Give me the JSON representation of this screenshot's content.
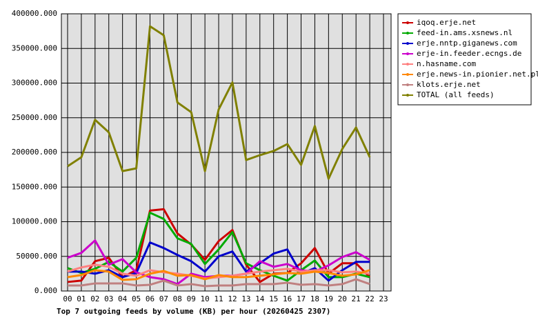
{
  "chart_data": {
    "type": "line",
    "title": "Top 7 outgoing feeds by volume (KB) per hour (20260425 2307)",
    "categories": [
      "00",
      "01",
      "02",
      "03",
      "04",
      "05",
      "06",
      "07",
      "08",
      "09",
      "10",
      "11",
      "12",
      "13",
      "14",
      "15",
      "16",
      "17",
      "18",
      "19",
      "20",
      "21",
      "22",
      "23"
    ],
    "ylim": [
      0,
      400000
    ],
    "yticks": [
      {
        "value": 0,
        "label": "0.000"
      },
      {
        "value": 50000,
        "label": "50000.000"
      },
      {
        "value": 100000,
        "label": "100000.000"
      },
      {
        "value": 150000,
        "label": "150000.000"
      },
      {
        "value": 200000,
        "label": "200000.000"
      },
      {
        "value": 250000,
        "label": "250000.000"
      },
      {
        "value": 300000,
        "label": "300000.000"
      },
      {
        "value": 350000,
        "label": "350000.000"
      },
      {
        "value": 400000,
        "label": "400000.000"
      }
    ],
    "grid": true,
    "legend": "top-right",
    "series": [
      {
        "name": "iqoq.erje.net",
        "color": "#cc0000",
        "values": [
          13000,
          15000,
          43000,
          48000,
          20000,
          30000,
          116000,
          118000,
          83000,
          67000,
          45000,
          72000,
          88000,
          38000,
          13000,
          25000,
          26000,
          40000,
          62000,
          25000,
          40000,
          40000,
          20000,
          null
        ]
      },
      {
        "name": "feed-in.ams.xsnews.nl",
        "color": "#00aa00",
        "values": [
          33000,
          26000,
          32000,
          42000,
          28000,
          48000,
          113000,
          104000,
          76000,
          68000,
          39000,
          60000,
          85000,
          40000,
          30000,
          22000,
          15000,
          30000,
          44000,
          20000,
          20000,
          25000,
          20000,
          null
        ]
      },
      {
        "name": "erje.nntp.giganews.com",
        "color": "#0000cc",
        "values": [
          28000,
          28000,
          25000,
          30000,
          20000,
          26000,
          70000,
          62000,
          52000,
          43000,
          28000,
          50000,
          57000,
          28000,
          40000,
          54000,
          60000,
          25000,
          33000,
          15000,
          30000,
          42000,
          42000,
          null
        ]
      },
      {
        "name": "erje-in.feeder.ecngs.de",
        "color": "#cc00cc",
        "values": [
          48000,
          55000,
          73000,
          38000,
          46000,
          27000,
          20000,
          17000,
          10000,
          25000,
          20000,
          22000,
          22000,
          25000,
          43000,
          35000,
          39000,
          30000,
          28000,
          37000,
          49000,
          56000,
          45000,
          null
        ]
      },
      {
        "name": "n.hasname.com",
        "color": "#ff8080",
        "values": [
          28000,
          34000,
          38000,
          35000,
          25000,
          22000,
          30000,
          27000,
          25000,
          22000,
          18000,
          20000,
          22000,
          25000,
          28000,
          30000,
          32000,
          28000,
          30000,
          30000,
          27000,
          28000,
          25000,
          null
        ]
      },
      {
        "name": "erje.news-in.pionier.net.pl",
        "color": "#ff8800",
        "values": [
          20000,
          23000,
          30000,
          28000,
          16000,
          17000,
          25000,
          29000,
          22000,
          23000,
          17000,
          23000,
          20000,
          20000,
          22000,
          24000,
          26000,
          25000,
          28000,
          26000,
          22000,
          24000,
          30000,
          null
        ]
      },
      {
        "name": "klots.erje.net",
        "color": "#c08080",
        "values": [
          8000,
          8000,
          11000,
          11000,
          11000,
          8000,
          9000,
          15000,
          8000,
          10000,
          7000,
          8000,
          8000,
          10000,
          10000,
          10000,
          12000,
          9000,
          10000,
          8000,
          10000,
          17000,
          10000,
          null
        ]
      },
      {
        "name": "TOTAL (all feeds)",
        "color": "#808000",
        "values": [
          180000,
          193000,
          247000,
          229000,
          173000,
          177000,
          382000,
          369000,
          272000,
          258000,
          173000,
          262000,
          301000,
          189000,
          196000,
          202000,
          212000,
          182000,
          238000,
          162000,
          205000,
          236000,
          193000,
          null
        ]
      }
    ]
  }
}
